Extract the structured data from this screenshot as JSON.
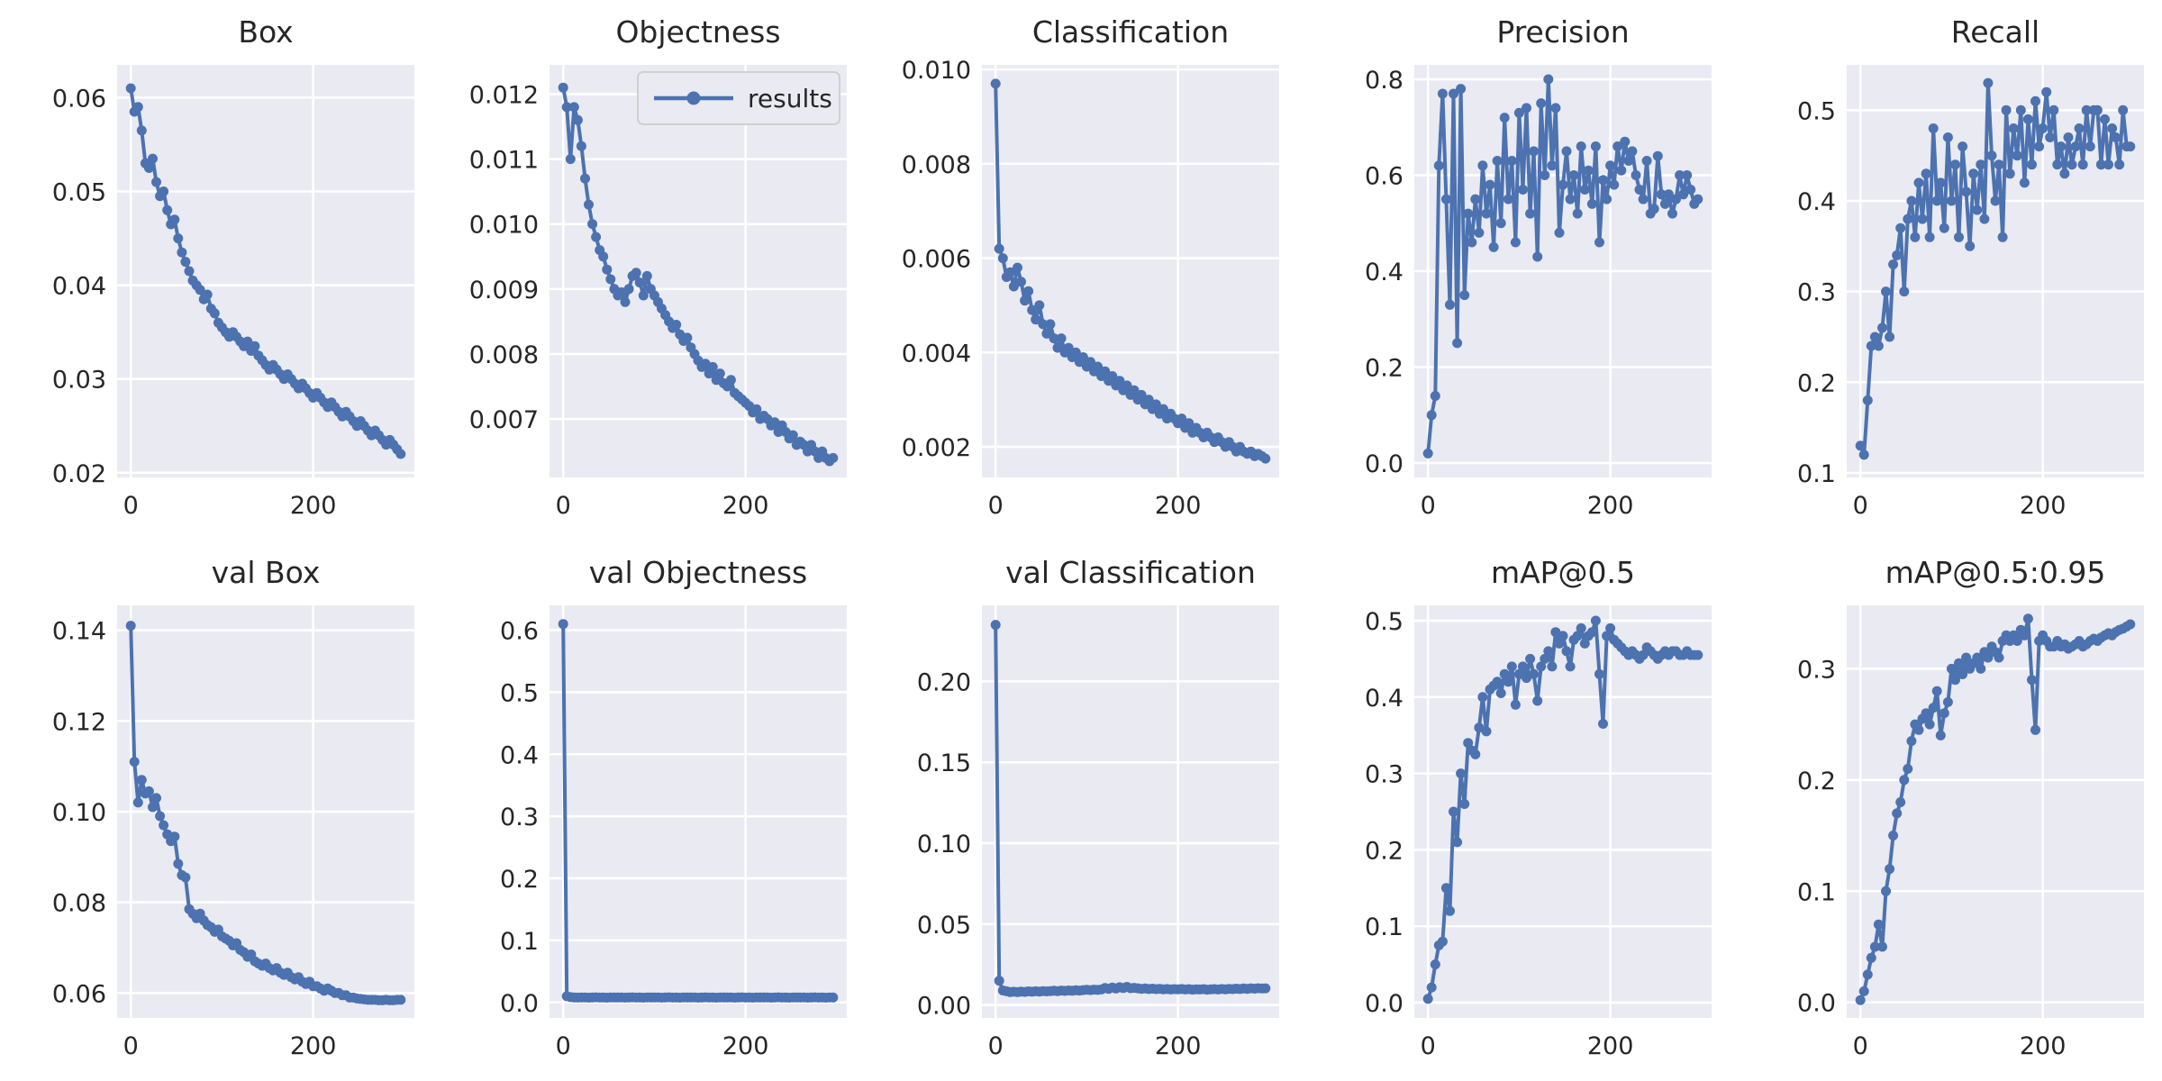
{
  "figure": {
    "axes_bg": "#eaeaf2",
    "grid_color": "#ffffff",
    "line_color": "#4c72b0",
    "tick_color": "#262626",
    "title_color": "#262626",
    "legend_edge": "#cfcfcf"
  },
  "chart_data": [
    {
      "type": "line",
      "title": "Box",
      "series_name": "results",
      "xlim": [
        -15,
        311
      ],
      "ylim": [
        0.0195,
        0.0635
      ],
      "x_ticks": [
        0,
        200
      ],
      "x_tick_labels": [
        "0",
        "200"
      ],
      "y_ticks": [
        0.02,
        0.03,
        0.04,
        0.05,
        0.06
      ],
      "y_tick_labels": [
        "0.02",
        "0.03",
        "0.04",
        "0.05",
        "0.06"
      ],
      "x_step": 4,
      "y": [
        0.061,
        0.0585,
        0.059,
        0.0565,
        0.053,
        0.0525,
        0.0535,
        0.051,
        0.0495,
        0.05,
        0.048,
        0.0465,
        0.047,
        0.045,
        0.0435,
        0.0425,
        0.0415,
        0.0405,
        0.04,
        0.0395,
        0.0385,
        0.039,
        0.0375,
        0.037,
        0.036,
        0.0355,
        0.035,
        0.0345,
        0.035,
        0.0345,
        0.034,
        0.0335,
        0.034,
        0.033,
        0.0335,
        0.0325,
        0.032,
        0.0315,
        0.031,
        0.0315,
        0.031,
        0.0305,
        0.03,
        0.0305,
        0.03,
        0.0295,
        0.029,
        0.0295,
        0.029,
        0.0285,
        0.028,
        0.0285,
        0.028,
        0.0275,
        0.027,
        0.0275,
        0.027,
        0.0265,
        0.026,
        0.0265,
        0.026,
        0.0255,
        0.025,
        0.0255,
        0.025,
        0.0245,
        0.024,
        0.0245,
        0.024,
        0.0235,
        0.023,
        0.0235,
        0.023,
        0.0225,
        0.022
      ]
    },
    {
      "type": "line",
      "title": "Objectness",
      "series_name": "results",
      "legend_label": "results",
      "xlim": [
        -15,
        311
      ],
      "ylim": [
        0.0061,
        0.01245
      ],
      "x_ticks": [
        0,
        200
      ],
      "x_tick_labels": [
        "0",
        "200"
      ],
      "y_ticks": [
        0.007,
        0.008,
        0.009,
        0.01,
        0.011,
        0.012
      ],
      "y_tick_labels": [
        "0.007",
        "0.008",
        "0.009",
        "0.010",
        "0.011",
        "0.012"
      ],
      "x_step": 4,
      "y": [
        0.0121,
        0.0118,
        0.011,
        0.0118,
        0.0116,
        0.0112,
        0.0107,
        0.0103,
        0.01,
        0.0098,
        0.0096,
        0.0095,
        0.0093,
        0.00915,
        0.009,
        0.0089,
        0.00895,
        0.0088,
        0.009,
        0.0092,
        0.00925,
        0.0091,
        0.0089,
        0.0092,
        0.009,
        0.0089,
        0.0088,
        0.0087,
        0.0086,
        0.0085,
        0.0084,
        0.00845,
        0.0083,
        0.0082,
        0.00825,
        0.0081,
        0.008,
        0.0079,
        0.0078,
        0.00785,
        0.0077,
        0.0078,
        0.0076,
        0.0077,
        0.00755,
        0.0075,
        0.0076,
        0.0074,
        0.00735,
        0.0073,
        0.00725,
        0.0072,
        0.0071,
        0.00715,
        0.007,
        0.00705,
        0.007,
        0.0069,
        0.00695,
        0.0068,
        0.0069,
        0.0068,
        0.0067,
        0.00675,
        0.0066,
        0.00665,
        0.0066,
        0.0065,
        0.0066,
        0.0065,
        0.0064,
        0.0065,
        0.0064,
        0.00635,
        0.0064
      ]
    },
    {
      "type": "line",
      "title": "Classification",
      "series_name": "results",
      "xlim": [
        -15,
        311
      ],
      "ylim": [
        0.00135,
        0.0101
      ],
      "x_ticks": [
        0,
        200
      ],
      "x_tick_labels": [
        "0",
        "200"
      ],
      "y_ticks": [
        0.002,
        0.004,
        0.006,
        0.008,
        0.01
      ],
      "y_tick_labels": [
        "0.002",
        "0.004",
        "0.006",
        "0.008",
        "0.010"
      ],
      "x_step": 4,
      "y": [
        0.0097,
        0.0062,
        0.006,
        0.0056,
        0.0057,
        0.0054,
        0.0058,
        0.0055,
        0.0051,
        0.0053,
        0.0049,
        0.0047,
        0.005,
        0.0046,
        0.0044,
        0.0046,
        0.0043,
        0.0041,
        0.0043,
        0.004,
        0.0041,
        0.0039,
        0.004,
        0.0038,
        0.0039,
        0.0037,
        0.0038,
        0.0036,
        0.0037,
        0.0035,
        0.0036,
        0.0034,
        0.0035,
        0.0033,
        0.0034,
        0.0032,
        0.0033,
        0.0031,
        0.0032,
        0.003,
        0.0031,
        0.0029,
        0.003,
        0.0028,
        0.0029,
        0.0027,
        0.0028,
        0.0026,
        0.0027,
        0.0026,
        0.0025,
        0.0026,
        0.0024,
        0.0025,
        0.0023,
        0.0024,
        0.0023,
        0.0022,
        0.0023,
        0.0022,
        0.0021,
        0.0022,
        0.0021,
        0.002,
        0.0021,
        0.002,
        0.0019,
        0.002,
        0.0019,
        0.00185,
        0.0019,
        0.0018,
        0.00185,
        0.0018,
        0.00175
      ]
    },
    {
      "type": "line",
      "title": "Precision",
      "series_name": "results",
      "xlim": [
        -15,
        311
      ],
      "ylim": [
        -0.03,
        0.83
      ],
      "x_ticks": [
        0,
        200
      ],
      "x_tick_labels": [
        "0",
        "200"
      ],
      "y_ticks": [
        0.0,
        0.2,
        0.4,
        0.6,
        0.8
      ],
      "y_tick_labels": [
        "0.0",
        "0.2",
        "0.4",
        "0.6",
        "0.8"
      ],
      "x_step": 4,
      "y": [
        0.02,
        0.1,
        0.14,
        0.62,
        0.77,
        0.55,
        0.33,
        0.77,
        0.25,
        0.78,
        0.35,
        0.52,
        0.46,
        0.55,
        0.48,
        0.62,
        0.52,
        0.58,
        0.45,
        0.63,
        0.5,
        0.72,
        0.55,
        0.63,
        0.46,
        0.73,
        0.57,
        0.74,
        0.52,
        0.65,
        0.43,
        0.75,
        0.6,
        0.8,
        0.62,
        0.74,
        0.48,
        0.58,
        0.65,
        0.55,
        0.6,
        0.52,
        0.66,
        0.57,
        0.61,
        0.54,
        0.66,
        0.46,
        0.59,
        0.55,
        0.62,
        0.58,
        0.66,
        0.61,
        0.67,
        0.63,
        0.65,
        0.6,
        0.57,
        0.55,
        0.63,
        0.52,
        0.53,
        0.64,
        0.56,
        0.54,
        0.56,
        0.52,
        0.55,
        0.6,
        0.56,
        0.6,
        0.57,
        0.54,
        0.55
      ]
    },
    {
      "type": "line",
      "title": "Recall",
      "series_name": "results",
      "xlim": [
        -15,
        311
      ],
      "ylim": [
        0.095,
        0.55
      ],
      "x_ticks": [
        0,
        200
      ],
      "x_tick_labels": [
        "0",
        "200"
      ],
      "y_ticks": [
        0.1,
        0.2,
        0.3,
        0.4,
        0.5
      ],
      "y_tick_labels": [
        "0.1",
        "0.2",
        "0.3",
        "0.4",
        "0.5"
      ],
      "x_step": 4,
      "y": [
        0.13,
        0.12,
        0.18,
        0.24,
        0.25,
        0.24,
        0.26,
        0.3,
        0.25,
        0.33,
        0.34,
        0.37,
        0.3,
        0.38,
        0.4,
        0.36,
        0.42,
        0.38,
        0.43,
        0.36,
        0.48,
        0.4,
        0.42,
        0.37,
        0.47,
        0.4,
        0.44,
        0.36,
        0.46,
        0.41,
        0.35,
        0.43,
        0.39,
        0.44,
        0.38,
        0.53,
        0.45,
        0.4,
        0.44,
        0.36,
        0.5,
        0.43,
        0.48,
        0.45,
        0.5,
        0.42,
        0.49,
        0.44,
        0.51,
        0.46,
        0.48,
        0.52,
        0.47,
        0.5,
        0.44,
        0.46,
        0.43,
        0.47,
        0.44,
        0.46,
        0.48,
        0.44,
        0.5,
        0.46,
        0.5,
        0.5,
        0.44,
        0.49,
        0.44,
        0.48,
        0.47,
        0.44,
        0.5,
        0.46,
        0.46
      ]
    },
    {
      "type": "line",
      "title": "val Box",
      "series_name": "results",
      "xlim": [
        -15,
        311
      ],
      "ylim": [
        0.0545,
        0.1455
      ],
      "x_ticks": [
        0,
        200
      ],
      "x_tick_labels": [
        "0",
        "200"
      ],
      "y_ticks": [
        0.06,
        0.08,
        0.1,
        0.12,
        0.14
      ],
      "y_tick_labels": [
        "0.06",
        "0.08",
        "0.10",
        "0.12",
        "0.14"
      ],
      "x_step": 4,
      "y": [
        0.141,
        0.111,
        0.102,
        0.107,
        0.104,
        0.1045,
        0.101,
        0.103,
        0.099,
        0.097,
        0.095,
        0.0935,
        0.0945,
        0.0885,
        0.086,
        0.0855,
        0.0785,
        0.0775,
        0.0765,
        0.0775,
        0.076,
        0.075,
        0.0745,
        0.0735,
        0.074,
        0.0725,
        0.072,
        0.0715,
        0.0705,
        0.071,
        0.0695,
        0.069,
        0.068,
        0.0685,
        0.067,
        0.0665,
        0.066,
        0.0665,
        0.0655,
        0.065,
        0.0655,
        0.0645,
        0.064,
        0.0645,
        0.0635,
        0.063,
        0.0635,
        0.0625,
        0.062,
        0.0625,
        0.0615,
        0.0615,
        0.061,
        0.0605,
        0.061,
        0.0605,
        0.06,
        0.06,
        0.0595,
        0.0595,
        0.059,
        0.059,
        0.0588,
        0.0587,
        0.0586,
        0.0585,
        0.0585,
        0.0585,
        0.0584,
        0.0584,
        0.0585,
        0.0584,
        0.0584,
        0.0585,
        0.0585
      ]
    },
    {
      "type": "line",
      "title": "val Objectness",
      "series_name": "results",
      "xlim": [
        -15,
        311
      ],
      "ylim": [
        -0.025,
        0.64
      ],
      "x_ticks": [
        0,
        200
      ],
      "x_tick_labels": [
        "0",
        "200"
      ],
      "y_ticks": [
        0.0,
        0.1,
        0.2,
        0.3,
        0.4,
        0.5,
        0.6
      ],
      "y_tick_labels": [
        "0.0",
        "0.1",
        "0.2",
        "0.3",
        "0.4",
        "0.5",
        "0.6"
      ],
      "x_step": 4,
      "y": [
        0.61,
        0.01,
        0.0085,
        0.008,
        0.0078,
        0.0079,
        0.0081,
        0.0077,
        0.008,
        0.0082,
        0.0078,
        0.008,
        0.0076,
        0.0081,
        0.0079,
        0.0079,
        0.0081,
        0.0077,
        0.008,
        0.0082,
        0.0078,
        0.008,
        0.0076,
        0.0081,
        0.0079,
        0.0079,
        0.0081,
        0.0077,
        0.008,
        0.0082,
        0.0078,
        0.008,
        0.0076,
        0.0081,
        0.0079,
        0.0079,
        0.0081,
        0.0077,
        0.008,
        0.0082,
        0.0078,
        0.008,
        0.0076,
        0.0081,
        0.0079,
        0.0079,
        0.0081,
        0.0077,
        0.008,
        0.0082,
        0.0078,
        0.008,
        0.0076,
        0.0081,
        0.0079,
        0.0079,
        0.0081,
        0.0077,
        0.008,
        0.0082,
        0.0078,
        0.008,
        0.0076,
        0.0081,
        0.0079,
        0.0079,
        0.0081,
        0.0077,
        0.008,
        0.0082,
        0.0078,
        0.008,
        0.0076,
        0.0081,
        0.0079
      ]
    },
    {
      "type": "line",
      "title": "val Classification",
      "series_name": "results",
      "xlim": [
        -15,
        311
      ],
      "ylim": [
        -0.008,
        0.247
      ],
      "x_ticks": [
        0,
        200
      ],
      "x_tick_labels": [
        "0",
        "200"
      ],
      "y_ticks": [
        0.0,
        0.05,
        0.1,
        0.15,
        0.2
      ],
      "y_tick_labels": [
        "0.00",
        "0.05",
        "0.10",
        "0.15",
        "0.20"
      ],
      "x_step": 4,
      "y": [
        0.235,
        0.015,
        0.009,
        0.0085,
        0.008,
        0.0082,
        0.008,
        0.0083,
        0.0081,
        0.0084,
        0.0082,
        0.0085,
        0.0083,
        0.0086,
        0.0084,
        0.0086,
        0.0088,
        0.0086,
        0.0089,
        0.0087,
        0.009,
        0.0088,
        0.0091,
        0.0089,
        0.0092,
        0.0094,
        0.0092,
        0.0095,
        0.0093,
        0.0096,
        0.0105,
        0.01,
        0.0108,
        0.0102,
        0.011,
        0.0105,
        0.0112,
        0.0104,
        0.0106,
        0.0103,
        0.01,
        0.0102,
        0.0099,
        0.0101,
        0.0098,
        0.01,
        0.0097,
        0.0099,
        0.0096,
        0.0098,
        0.0097,
        0.0099,
        0.0096,
        0.0098,
        0.0095,
        0.0097,
        0.0096,
        0.0098,
        0.0095,
        0.0097,
        0.0098,
        0.0096,
        0.0099,
        0.0097,
        0.01,
        0.0098,
        0.0101,
        0.0099,
        0.0102,
        0.01,
        0.0103,
        0.0101,
        0.0104,
        0.0102,
        0.0103
      ]
    },
    {
      "type": "line",
      "title": "mAP@0.5",
      "series_name": "results",
      "xlim": [
        -15,
        311
      ],
      "ylim": [
        -0.02,
        0.52
      ],
      "x_ticks": [
        0,
        200
      ],
      "x_tick_labels": [
        "0",
        "200"
      ],
      "y_ticks": [
        0.0,
        0.1,
        0.2,
        0.3,
        0.4,
        0.5
      ],
      "y_tick_labels": [
        "0.0",
        "0.1",
        "0.2",
        "0.3",
        "0.4",
        "0.5"
      ],
      "x_step": 4,
      "y": [
        0.005,
        0.02,
        0.05,
        0.075,
        0.08,
        0.15,
        0.12,
        0.25,
        0.21,
        0.3,
        0.26,
        0.34,
        0.33,
        0.325,
        0.36,
        0.4,
        0.355,
        0.41,
        0.415,
        0.42,
        0.405,
        0.43,
        0.42,
        0.44,
        0.39,
        0.43,
        0.44,
        0.425,
        0.45,
        0.43,
        0.395,
        0.44,
        0.45,
        0.46,
        0.44,
        0.485,
        0.47,
        0.48,
        0.46,
        0.44,
        0.475,
        0.48,
        0.49,
        0.47,
        0.48,
        0.485,
        0.5,
        0.43,
        0.365,
        0.48,
        0.49,
        0.475,
        0.47,
        0.465,
        0.46,
        0.455,
        0.46,
        0.455,
        0.45,
        0.455,
        0.465,
        0.46,
        0.455,
        0.45,
        0.455,
        0.46,
        0.455,
        0.46,
        0.46,
        0.455,
        0.455,
        0.46,
        0.455,
        0.455,
        0.455
      ]
    },
    {
      "type": "line",
      "title": "mAP@0.5:0.95",
      "series_name": "results",
      "xlim": [
        -15,
        311
      ],
      "ylim": [
        -0.014,
        0.357
      ],
      "x_ticks": [
        0,
        200
      ],
      "x_tick_labels": [
        "0",
        "200"
      ],
      "y_ticks": [
        0.0,
        0.1,
        0.2,
        0.3
      ],
      "y_tick_labels": [
        "0.0",
        "0.1",
        "0.2",
        "0.3"
      ],
      "x_step": 4,
      "y": [
        0.002,
        0.01,
        0.025,
        0.04,
        0.05,
        0.07,
        0.05,
        0.1,
        0.12,
        0.15,
        0.17,
        0.18,
        0.2,
        0.21,
        0.235,
        0.25,
        0.245,
        0.255,
        0.26,
        0.25,
        0.265,
        0.28,
        0.24,
        0.26,
        0.27,
        0.3,
        0.29,
        0.305,
        0.295,
        0.31,
        0.3,
        0.305,
        0.31,
        0.3,
        0.315,
        0.31,
        0.32,
        0.315,
        0.31,
        0.325,
        0.33,
        0.325,
        0.33,
        0.325,
        0.335,
        0.33,
        0.345,
        0.29,
        0.245,
        0.325,
        0.33,
        0.325,
        0.32,
        0.32,
        0.325,
        0.32,
        0.322,
        0.318,
        0.32,
        0.322,
        0.325,
        0.32,
        0.322,
        0.325,
        0.327,
        0.325,
        0.328,
        0.33,
        0.332,
        0.33,
        0.333,
        0.335,
        0.336,
        0.338,
        0.34
      ]
    }
  ]
}
